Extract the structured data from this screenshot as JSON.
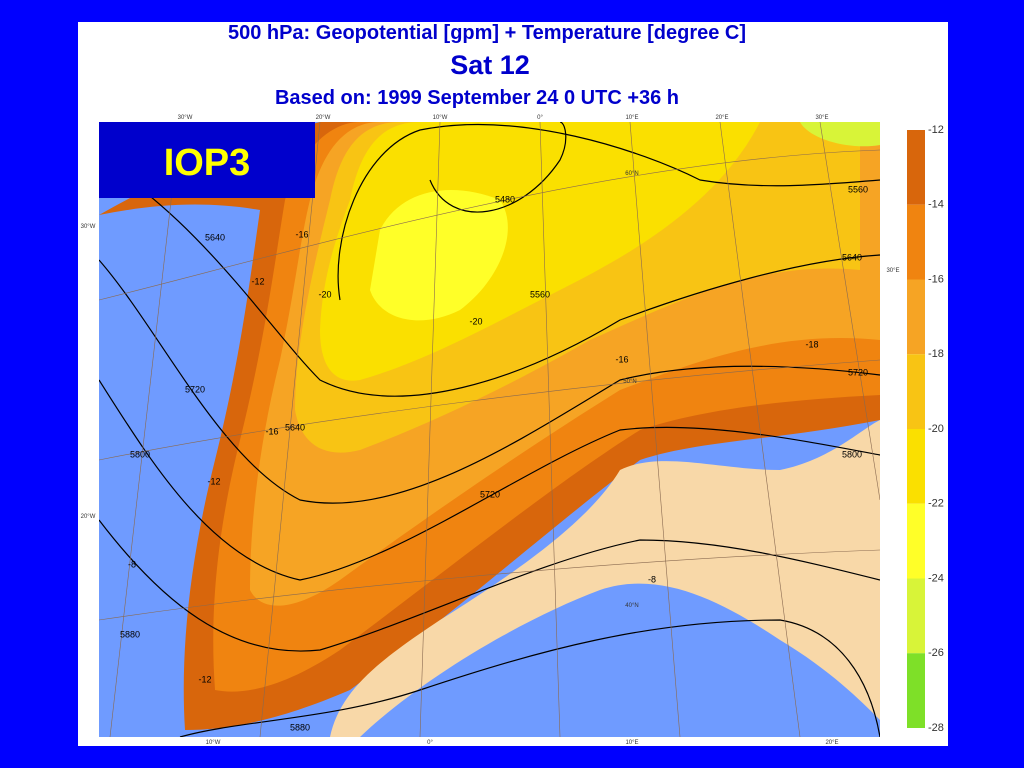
{
  "header": {
    "title": "500 hPa: Geopotential [gpm] + Temperature [degree C]",
    "day": "Sat 12",
    "based_on": "Based on: 1999 September 24   0 UTC  +36 h"
  },
  "badge": "IOP3",
  "legend": {
    "labels": [
      "-12",
      "-14",
      "-16",
      "-18",
      "-20",
      "-22",
      "-24",
      "-26",
      "-28"
    ],
    "colors": [
      "#d8660c",
      "#f08410",
      "#f6a424",
      "#f8c414",
      "#fae000",
      "#ffff28",
      "#d8f438",
      "#7ee028"
    ]
  },
  "contour_labels": [
    "5480",
    "5560",
    "5640",
    "5720",
    "5800",
    "5880",
    "5560",
    "5640",
    "5720",
    "5800",
    "5880",
    "5640",
    "5720",
    "-12",
    "-16",
    "-20",
    "-8",
    "-16",
    "-18",
    "-20",
    "-12",
    "-16",
    "-12",
    "-8"
  ],
  "graticule": [
    "30°W",
    "20°W",
    "10°W",
    "0°",
    "10°E",
    "20°E",
    "30°E",
    "60°N",
    "50°N",
    "40°N",
    "30°E",
    "30°W",
    "20°W",
    "10°W",
    "0°",
    "10°E",
    "20°E"
  ]
}
